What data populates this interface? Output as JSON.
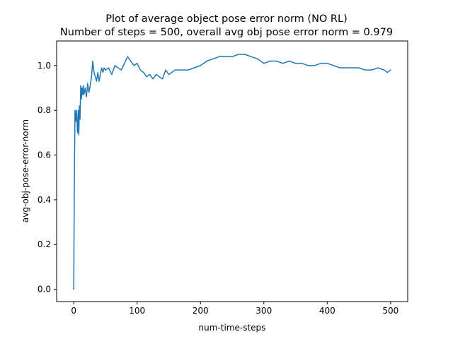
{
  "chart_data": {
    "type": "line",
    "title": "Plot of average object pose error norm (NO RL)",
    "subtitle": "Number of steps = 500, overall avg obj pose error norm = 0.979",
    "xlabel": "num-time-steps",
    "ylabel": "avg-obj-pose-error-norm",
    "xlim": [
      -27,
      527
    ],
    "ylim": [
      -0.055,
      1.11
    ],
    "xticks": [
      0,
      100,
      200,
      300,
      400,
      500
    ],
    "yticks": [
      0.0,
      0.2,
      0.4,
      0.6,
      0.8,
      1.0
    ],
    "xtick_labels": [
      "0",
      "100",
      "200",
      "300",
      "400",
      "500"
    ],
    "ytick_labels": [
      "0.0",
      "0.2",
      "0.4",
      "0.6",
      "0.8",
      "1.0"
    ],
    "grid": false,
    "color": "#1f77b4",
    "series": [
      {
        "x": [
          0,
          1,
          2,
          3,
          4,
          5,
          6,
          7,
          8,
          9,
          10,
          11,
          12,
          13,
          14,
          15,
          16,
          18,
          20,
          22,
          24,
          26,
          28,
          30,
          32,
          34,
          36,
          38,
          40,
          42,
          44,
          46,
          48,
          50,
          55,
          60,
          65,
          70,
          75,
          80,
          85,
          90,
          95,
          100,
          105,
          110,
          115,
          120,
          125,
          130,
          135,
          140,
          145,
          150,
          155,
          160,
          170,
          180,
          190,
          200,
          210,
          220,
          230,
          240,
          250,
          260,
          270,
          280,
          290,
          300,
          310,
          320,
          330,
          340,
          350,
          360,
          370,
          380,
          390,
          400,
          410,
          420,
          430,
          440,
          450,
          460,
          470,
          480,
          490,
          495,
          500
        ],
        "y": [
          0.0,
          0.5,
          0.8,
          0.75,
          0.8,
          0.76,
          0.7,
          0.8,
          0.69,
          0.82,
          0.76,
          0.91,
          0.85,
          0.9,
          0.87,
          0.91,
          0.87,
          0.9,
          0.86,
          0.92,
          0.88,
          0.91,
          0.95,
          1.02,
          0.97,
          0.95,
          0.93,
          0.97,
          0.93,
          0.96,
          0.99,
          0.97,
          0.99,
          0.98,
          0.99,
          0.96,
          1.0,
          0.99,
          0.98,
          1.01,
          1.04,
          1.02,
          1.0,
          1.01,
          0.98,
          0.97,
          0.95,
          0.96,
          0.94,
          0.96,
          0.95,
          0.94,
          0.98,
          0.96,
          0.97,
          0.98,
          0.98,
          0.98,
          0.99,
          1.0,
          1.02,
          1.03,
          1.04,
          1.04,
          1.04,
          1.05,
          1.05,
          1.04,
          1.03,
          1.01,
          1.02,
          1.02,
          1.01,
          1.02,
          1.01,
          1.01,
          1.0,
          1.0,
          1.01,
          1.01,
          1.0,
          0.99,
          0.99,
          0.99,
          0.99,
          0.98,
          0.98,
          0.99,
          0.98,
          0.97,
          0.98
        ]
      }
    ]
  }
}
